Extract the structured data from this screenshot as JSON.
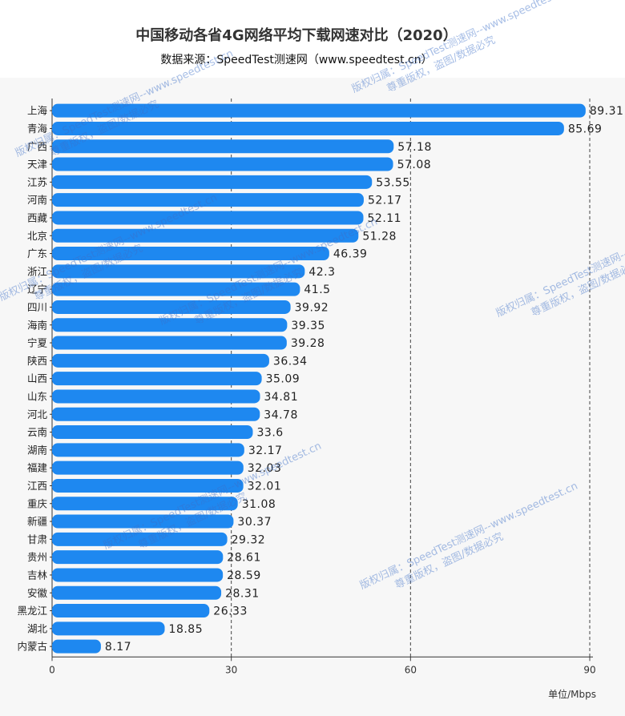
{
  "title": "中国移动各省4G网络平均下载网速对比（2020）",
  "subtitle": "数据来源：SpeedTest测速网（www.speedtest.cn）",
  "unit_label": "单位/Mbps",
  "watermark": {
    "line1": "版权归属：SpeedTest测速网--www.speedtest.cn",
    "line2": "尊重版权，盗图/数据必究"
  },
  "chart_data": {
    "type": "bar",
    "orientation": "horizontal",
    "title": "中国移动各省4G网络平均下载网速对比（2020）",
    "subtitle": "数据来源：SpeedTest测速网（www.speedtest.cn）",
    "categories": [
      "上海",
      "青海",
      "广西",
      "天津",
      "江苏",
      "河南",
      "西藏",
      "北京",
      "广东",
      "浙江",
      "辽宁",
      "四川",
      "海南",
      "宁夏",
      "陕西",
      "山西",
      "山东",
      "河北",
      "云南",
      "湖南",
      "福建",
      "江西",
      "重庆",
      "新疆",
      "甘肃",
      "贵州",
      "吉林",
      "安徽",
      "黑龙江",
      "湖北",
      "内蒙古"
    ],
    "values": [
      89.31,
      85.69,
      57.18,
      57.08,
      53.55,
      52.17,
      52.11,
      51.28,
      46.39,
      42.3,
      41.5,
      39.92,
      39.35,
      39.28,
      36.34,
      35.09,
      34.81,
      34.78,
      33.6,
      32.17,
      32.03,
      32.01,
      31.08,
      30.37,
      29.32,
      28.61,
      28.59,
      28.31,
      26.33,
      18.85,
      8.17
    ],
    "value_labels": [
      "89.31",
      "85.69",
      "57.18",
      "57.08",
      "53.55",
      "52.17",
      "52.11",
      "51.28",
      "46.39",
      "42.3",
      "41.5",
      "39.92",
      "39.35",
      "39.28",
      "36.34",
      "35.09",
      "34.81",
      "34.78",
      "33.6",
      "32.17",
      "32.03",
      "32.01",
      "31.08",
      "30.37",
      "29.32",
      "28.61",
      "28.59",
      "28.31",
      "26.33",
      "18.85",
      "8.17"
    ],
    "xlim": [
      0,
      90
    ],
    "xticks": [
      "0",
      "30",
      "60",
      "90"
    ],
    "xlabel": "单位/Mbps",
    "grid": "vertical dashed",
    "bar_color": "#1e88f0"
  }
}
